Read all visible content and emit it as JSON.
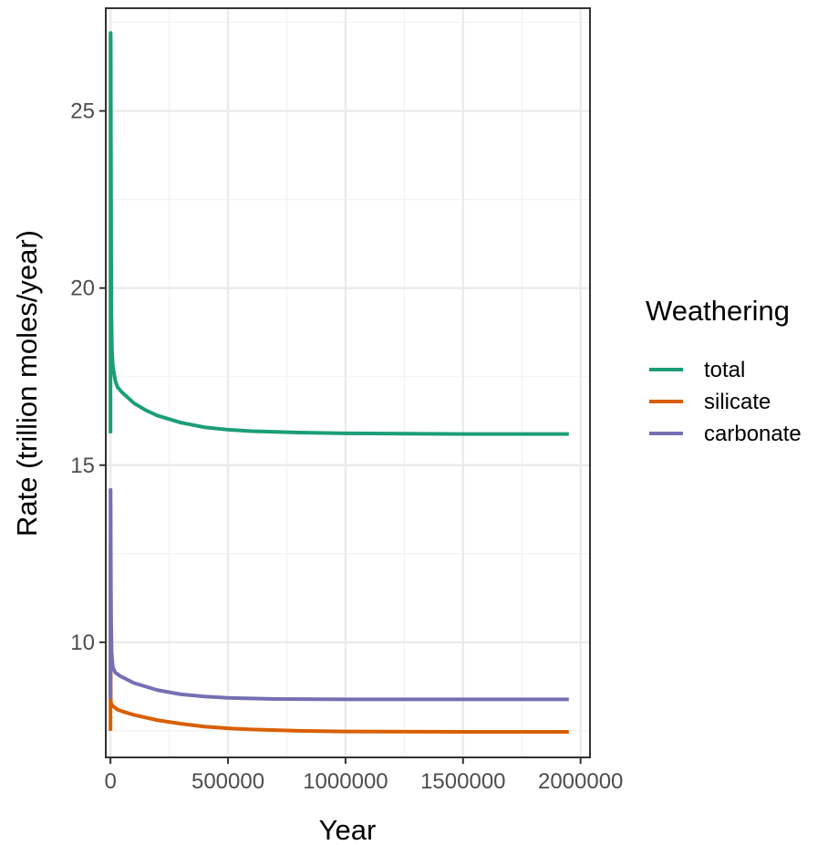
{
  "chart_data": {
    "type": "line",
    "title": "",
    "xlabel": "Year",
    "ylabel": "Rate (trillion moles/year)",
    "xlim": [
      -20000,
      2040000
    ],
    "ylim": [
      6.75,
      27.9
    ],
    "x_ticks": [
      0,
      500000,
      1000000,
      1500000,
      2000000
    ],
    "x_tick_labels": [
      "0",
      "500000",
      "1000000",
      "1500000",
      "2000000"
    ],
    "y_ticks": [
      10,
      15,
      20,
      25
    ],
    "y_tick_labels": [
      "10",
      "15",
      "20",
      "25"
    ],
    "grid": true,
    "legend": {
      "title": "Weathering",
      "placement": "right"
    },
    "series": [
      {
        "name": "total",
        "color": "#1b9e77",
        "points": [
          [
            0,
            15.9
          ],
          [
            300,
            27.1
          ],
          [
            600,
            27.2
          ],
          [
            1200,
            27.0
          ],
          [
            2000,
            24.0
          ],
          [
            3000,
            21.0
          ],
          [
            4000,
            19.3
          ],
          [
            6000,
            18.3
          ],
          [
            10000,
            17.8
          ],
          [
            20000,
            17.4
          ],
          [
            30000,
            17.2
          ],
          [
            50000,
            17.05
          ],
          [
            100000,
            16.75
          ],
          [
            150000,
            16.55
          ],
          [
            200000,
            16.4
          ],
          [
            300000,
            16.2
          ],
          [
            400000,
            16.07
          ],
          [
            500000,
            16.0
          ],
          [
            600000,
            15.96
          ],
          [
            800000,
            15.92
          ],
          [
            1000000,
            15.9
          ],
          [
            1500000,
            15.88
          ],
          [
            1950000,
            15.88
          ]
        ]
      },
      {
        "name": "silicate",
        "color": "#d95f02",
        "points": [
          [
            0,
            7.5
          ],
          [
            300,
            12.8
          ],
          [
            700,
            9.5
          ],
          [
            1200,
            8.4
          ],
          [
            2000,
            8.3
          ],
          [
            4000,
            8.25
          ],
          [
            10000,
            8.2
          ],
          [
            20000,
            8.15
          ],
          [
            30000,
            8.1
          ],
          [
            50000,
            8.05
          ],
          [
            100000,
            7.95
          ],
          [
            200000,
            7.8
          ],
          [
            300000,
            7.7
          ],
          [
            400000,
            7.62
          ],
          [
            500000,
            7.57
          ],
          [
            600000,
            7.54
          ],
          [
            800000,
            7.5
          ],
          [
            1000000,
            7.48
          ],
          [
            1500000,
            7.47
          ],
          [
            1950000,
            7.47
          ]
        ]
      },
      {
        "name": "carbonate",
        "color": "#7570b3",
        "points": [
          [
            0,
            8.4
          ],
          [
            300,
            14.3
          ],
          [
            600,
            14.3
          ],
          [
            1200,
            13.0
          ],
          [
            2000,
            11.5
          ],
          [
            3000,
            10.5
          ],
          [
            5000,
            9.7
          ],
          [
            10000,
            9.3
          ],
          [
            20000,
            9.15
          ],
          [
            40000,
            9.05
          ],
          [
            100000,
            8.85
          ],
          [
            200000,
            8.65
          ],
          [
            300000,
            8.53
          ],
          [
            400000,
            8.47
          ],
          [
            500000,
            8.43
          ],
          [
            700000,
            8.4
          ],
          [
            1000000,
            8.39
          ],
          [
            1500000,
            8.39
          ],
          [
            1950000,
            8.39
          ]
        ]
      }
    ]
  }
}
